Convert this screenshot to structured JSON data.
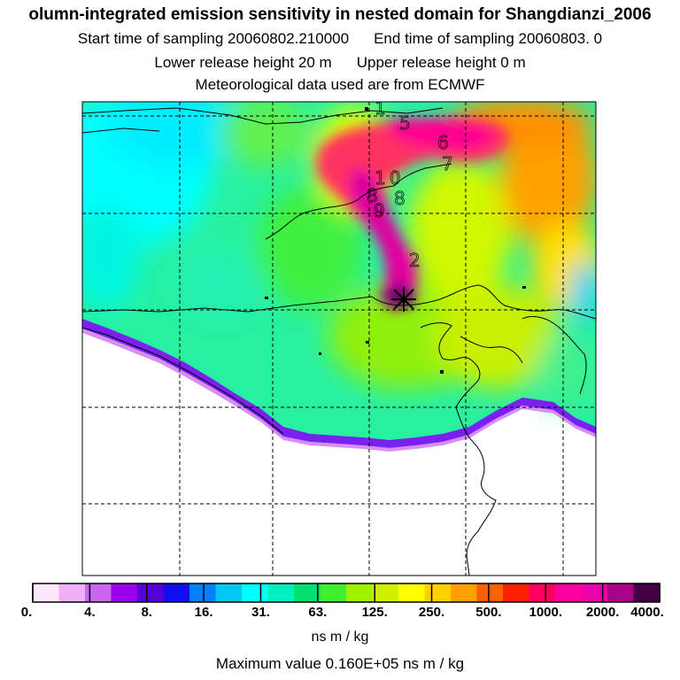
{
  "header": {
    "title": "olumn-integrated emission sensitivity in nested domain for Shangdianzi_2006",
    "start_label": "Start time of sampling 20060802.210000",
    "end_label": "End time of sampling 20060803.     0",
    "lower_label": "Lower release height   20 m",
    "upper_label": "Upper release height    0 m",
    "met_label": "Meteorological data used are from ECMWF"
  },
  "map": {
    "release_site": "Shangdianzi",
    "colors": {
      "ocean_fill": "#ffffff",
      "coast": "#000000",
      "grid": "#000000",
      "release_marker": "#000000"
    },
    "plume_numbers": [
      {
        "label": "1"
      },
      {
        "label": "5"
      },
      {
        "label": "6"
      },
      {
        "label": "7"
      },
      {
        "label": "10"
      },
      {
        "label": "8"
      },
      {
        "label": "8"
      },
      {
        "label": "9"
      },
      {
        "label": "2"
      }
    ]
  },
  "colorbar": {
    "tick_labels": [
      "0.",
      "4.",
      "8.",
      "16.",
      "31.",
      "63.",
      "125.",
      "250.",
      "500.",
      "1000.",
      "2000.",
      "4000."
    ],
    "colors": [
      "#ffe6ff",
      "#f0b0f5",
      "#cc66ee",
      "#9900ee",
      "#5500dd",
      "#1010ee",
      "#0080ff",
      "#00c8f0",
      "#00ffff",
      "#00f0c0",
      "#00e070",
      "#40f030",
      "#a0f000",
      "#d0f000",
      "#ffff00",
      "#ffd000",
      "#ffa000",
      "#ff6000",
      "#ff2000",
      "#ff0060",
      "#ff00a0",
      "#ee00aa",
      "#aa0088",
      "#440044"
    ],
    "unit": "ns m / kg"
  },
  "footer": {
    "max_value": "Maximum value  0.160E+05 ns m / kg"
  }
}
